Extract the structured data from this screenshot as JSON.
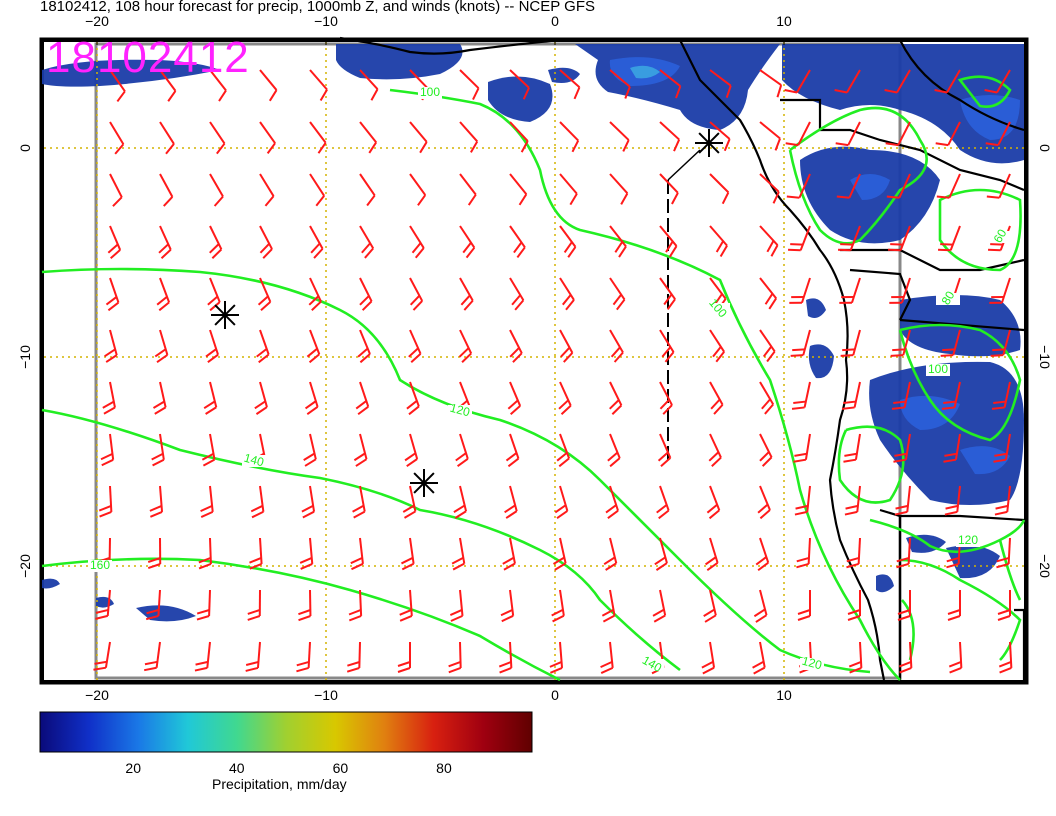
{
  "title": "18102412, 108 hour forecast for precip, 1000mb Z, and winds (knots) -- NCEP GFS",
  "stamp": "18102412",
  "axes": {
    "lon_ticks": [
      {
        "lon": -20,
        "label": "−20"
      },
      {
        "lon": -10,
        "label": "−10"
      },
      {
        "lon": 0,
        "label": "0"
      },
      {
        "lon": 10,
        "label": "10"
      }
    ],
    "lat_ticks": [
      {
        "lat": 0,
        "label": "0"
      },
      {
        "lat": -10,
        "label": "−10"
      },
      {
        "lat": -20,
        "label": "−20"
      }
    ]
  },
  "contours": {
    "color": "#22ee22",
    "labels": [
      "100",
      "120",
      "140",
      "160",
      "100",
      "120",
      "140",
      "60",
      "80",
      "100",
      "120"
    ]
  },
  "colorbar": {
    "title": "Precipitation, mm/day",
    "labels": [
      {
        "value": 20,
        "text": "20"
      },
      {
        "value": 40,
        "text": "40"
      },
      {
        "value": 60,
        "text": "60"
      },
      {
        "value": 80,
        "text": "80"
      }
    ],
    "colors": [
      "#0a0a7a",
      "#1030c8",
      "#1a78e6",
      "#20c8d8",
      "#40d890",
      "#a0d030",
      "#d8c800",
      "#e08010",
      "#d82010",
      "#a00010",
      "#600000"
    ]
  },
  "colors": {
    "wind_barb": "#ff1a1a",
    "contour": "#22ee22",
    "grid": "#d4b400",
    "precip": "#1a3ca8",
    "stamp": "#ff22ff"
  }
}
